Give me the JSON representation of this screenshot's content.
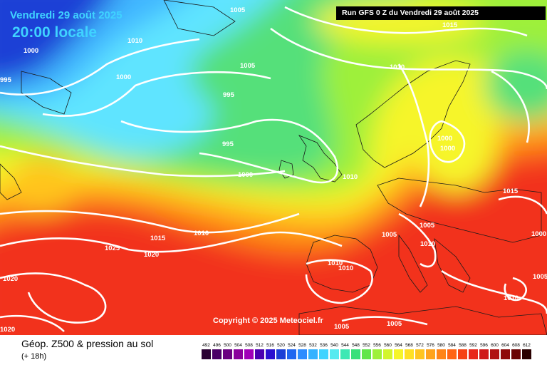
{
  "header": {
    "date": "Vendredi 29 août 2025",
    "local_time": "20:00 locale",
    "run_info": "Run GFS 0 Z du Vendredi 29 août 2025"
  },
  "map": {
    "copyright": "Copyright © 2025 Meteociel.fr",
    "isobar_labels": [
      "1005",
      "1005",
      "1015",
      "995",
      "1000",
      "1010",
      "1000",
      "1000",
      "1010",
      "1005",
      "995",
      "1010",
      "995",
      "1000",
      "1000",
      "1000",
      "1015",
      "1015",
      "1010",
      "1025",
      "1020",
      "1005",
      "1005",
      "1010",
      "1010",
      "1010",
      "1020",
      "1000",
      "1005",
      "1005",
      "1010",
      "1020"
    ],
    "colors": {
      "blue_dark": "#1b3fd6",
      "cyan": "#5fe4ff",
      "green": "#55e07a",
      "yellow": "#f6f52a",
      "orange": "#ff9d1c",
      "red": "#f2301c"
    }
  },
  "footer": {
    "title": "Géop. Z500 & pression au sol",
    "subtitle": "(+ 18h)"
  },
  "legend": {
    "values": [
      "492",
      "496",
      "500",
      "504",
      "508",
      "512",
      "516",
      "520",
      "524",
      "528",
      "532",
      "536",
      "540",
      "544",
      "548",
      "552",
      "556",
      "560",
      "564",
      "568",
      "572",
      "576",
      "580",
      "584",
      "588",
      "592",
      "596",
      "600",
      "604",
      "608",
      "612"
    ],
    "swatches": [
      "#2a0033",
      "#4b0066",
      "#6a0080",
      "#8a009c",
      "#a100b8",
      "#4b00b0",
      "#2a10d0",
      "#1b3fd6",
      "#1f66f0",
      "#2d8cff",
      "#35b2ff",
      "#3fd3ff",
      "#55eaf0",
      "#3ee8b4",
      "#39e07a",
      "#62e64a",
      "#9ef03a",
      "#d3f52e",
      "#f6f52a",
      "#ffe024",
      "#ffc51f",
      "#ffa31c",
      "#ff8418",
      "#ff6414",
      "#f64214",
      "#e8261a",
      "#cf1818",
      "#b01010",
      "#8e0a0a",
      "#6a0404",
      "#2a0000"
    ]
  }
}
